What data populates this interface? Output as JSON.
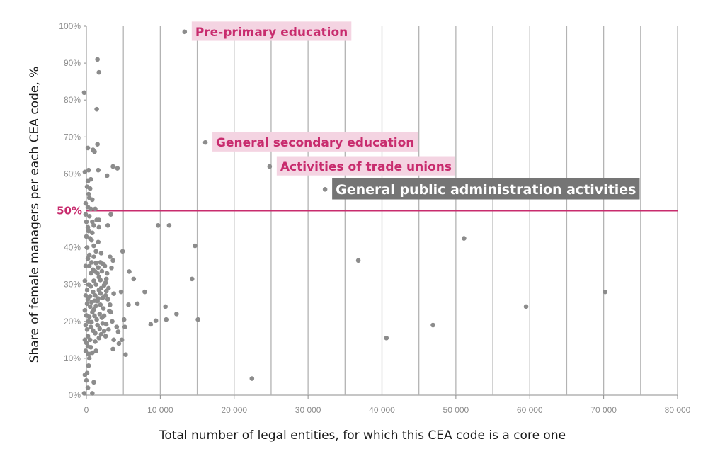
{
  "chart_data": {
    "type": "scatter",
    "xlabel": "Total number of legal entities, for which this CEA code is a core one",
    "ylabel": "Share of female managers per each CEA code, %",
    "xlim": [
      0,
      80000
    ],
    "ylim": [
      0,
      100
    ],
    "x_ticks": [
      "0",
      "10 000",
      "20 000",
      "30 000",
      "40 000",
      "50 000",
      "60 000",
      "70 000",
      "80 000"
    ],
    "y_ticks": [
      "0%",
      "10%",
      "20%",
      "30%",
      "40%",
      "50%",
      "60%",
      "70%",
      "80%",
      "90%",
      "100%"
    ],
    "grid": "vertical",
    "colors": {
      "points": "#8c8c8c",
      "threshold": "#c82c6e",
      "highlight_bg": "#f4d4e2",
      "dark_bg": "#757575"
    },
    "reference_line": {
      "y": 50,
      "label": "50%"
    },
    "annotations": [
      {
        "text": "Pre-primary education",
        "x": 13300,
        "y": 98.5,
        "style": "pink"
      },
      {
        "text": "General secondary education",
        "x": 16100,
        "y": 68.5,
        "style": "pink"
      },
      {
        "text": "Activities of trade unions",
        "x": 24800,
        "y": 62,
        "style": "pink"
      },
      {
        "text": "General public administration activities",
        "x": 32300,
        "y": 55.8,
        "style": "dark"
      }
    ],
    "points": [
      [
        13300,
        98.5
      ],
      [
        16100,
        68.5
      ],
      [
        24800,
        62
      ],
      [
        32300,
        55.8
      ],
      [
        1500,
        91
      ],
      [
        1700,
        87.5
      ],
      [
        1400,
        77.5
      ],
      [
        -300,
        82
      ],
      [
        1500,
        68
      ],
      [
        200,
        67
      ],
      [
        900,
        66.5
      ],
      [
        1100,
        66
      ],
      [
        -200,
        60.5
      ],
      [
        300,
        61
      ],
      [
        1600,
        61
      ],
      [
        2800,
        59.5
      ],
      [
        3600,
        62
      ],
      [
        4200,
        61.5
      ],
      [
        200,
        58
      ],
      [
        500,
        56
      ],
      [
        300,
        54.5
      ],
      [
        800,
        53
      ],
      [
        -100,
        52
      ],
      [
        200,
        51
      ],
      [
        600,
        50.5
      ],
      [
        1200,
        50.5
      ],
      [
        1400,
        47.5
      ],
      [
        1700,
        47.5
      ],
      [
        1000,
        46
      ],
      [
        1700,
        45.5
      ],
      [
        2900,
        46
      ],
      [
        3300,
        49
      ],
      [
        9700,
        46
      ],
      [
        11200,
        46
      ],
      [
        14700,
        40.5
      ],
      [
        4900,
        39
      ],
      [
        3200,
        37.5
      ],
      [
        3600,
        36.5
      ],
      [
        2300,
        35.5
      ],
      [
        3400,
        34.5
      ],
      [
        5800,
        33.5
      ],
      [
        6400,
        31.5
      ],
      [
        14300,
        31.5
      ],
      [
        2700,
        31.5
      ],
      [
        4700,
        28
      ],
      [
        7900,
        28
      ],
      [
        2000,
        29
      ],
      [
        3000,
        29
      ],
      [
        3700,
        27.5
      ],
      [
        5700,
        24.5
      ],
      [
        6900,
        24.8
      ],
      [
        10700,
        24
      ],
      [
        12200,
        22
      ],
      [
        15100,
        20.5
      ],
      [
        10800,
        20.5
      ],
      [
        9400,
        20.2
      ],
      [
        8700,
        19.2
      ],
      [
        5100,
        20.5
      ],
      [
        5200,
        18.5
      ],
      [
        4100,
        18.5
      ],
      [
        4300,
        17.2
      ],
      [
        3500,
        20
      ],
      [
        3300,
        22.5
      ],
      [
        3700,
        15
      ],
      [
        4800,
        15
      ],
      [
        4400,
        14
      ],
      [
        3600,
        12.5
      ],
      [
        5300,
        11
      ],
      [
        2600,
        16
      ],
      [
        2000,
        16.5
      ],
      [
        1800,
        18
      ],
      [
        2200,
        19.5
      ],
      [
        2400,
        21.5
      ],
      [
        1300,
        12
      ],
      [
        1200,
        14.5
      ],
      [
        1700,
        15.5
      ],
      [
        800,
        11.5
      ],
      [
        600,
        13
      ],
      [
        400,
        10
      ],
      [
        300,
        8
      ],
      [
        100,
        6
      ],
      [
        -200,
        5.5
      ],
      [
        0,
        4
      ],
      [
        200,
        2
      ],
      [
        -300,
        0.5
      ],
      [
        800,
        0.5
      ],
      [
        1000,
        3.5
      ],
      [
        22400,
        4.5
      ],
      [
        36800,
        36.5
      ],
      [
        40600,
        15.5
      ],
      [
        46900,
        19
      ],
      [
        51100,
        42.5
      ],
      [
        59500,
        24
      ],
      [
        70200,
        28
      ],
      [
        100,
        40
      ],
      [
        200,
        37
      ],
      [
        400,
        35
      ],
      [
        600,
        33
      ],
      [
        900,
        34
      ],
      [
        1200,
        33.5
      ],
      [
        1500,
        33
      ],
      [
        1700,
        32
      ],
      [
        300,
        30
      ],
      [
        600,
        29.5
      ],
      [
        900,
        28
      ],
      [
        1200,
        27
      ],
      [
        1500,
        25.5
      ],
      [
        1900,
        24.5
      ],
      [
        2300,
        23.5
      ],
      [
        200,
        26
      ],
      [
        500,
        24
      ],
      [
        800,
        22.5
      ],
      [
        1100,
        21.5
      ],
      [
        1400,
        20.5
      ],
      [
        1800,
        22
      ],
      [
        2100,
        21
      ],
      [
        300,
        20
      ],
      [
        600,
        18.5
      ],
      [
        900,
        17.5
      ],
      [
        1200,
        16.8
      ],
      [
        1500,
        19
      ],
      [
        200,
        16
      ],
      [
        500,
        15
      ],
      [
        -100,
        35
      ],
      [
        -200,
        31
      ],
      [
        -100,
        27
      ],
      [
        -200,
        23
      ],
      [
        -100,
        19
      ],
      [
        -200,
        15
      ],
      [
        -100,
        12
      ],
      [
        0,
        43
      ],
      [
        300,
        44.5
      ],
      [
        700,
        42
      ],
      [
        1000,
        40.5
      ],
      [
        1300,
        39
      ],
      [
        1600,
        41.5
      ],
      [
        2000,
        38.5
      ],
      [
        0,
        47
      ],
      [
        400,
        48.5
      ],
      [
        800,
        47
      ],
      [
        400,
        38
      ],
      [
        700,
        36
      ],
      [
        1000,
        31
      ],
      [
        1300,
        30
      ],
      [
        1700,
        28.5
      ],
      [
        2600,
        27
      ],
      [
        2900,
        26
      ],
      [
        3200,
        24.5
      ],
      [
        2600,
        30.5
      ],
      [
        2800,
        33
      ],
      [
        2500,
        35
      ],
      [
        1900,
        36
      ],
      [
        500,
        26.8
      ],
      [
        700,
        25.2
      ],
      [
        400,
        21.2
      ],
      [
        700,
        19.8
      ],
      [
        1000,
        23.2
      ],
      [
        1100,
        25.6
      ],
      [
        1300,
        24.2
      ],
      [
        100,
        28.5
      ],
      [
        100,
        24.8
      ],
      [
        0,
        21.6
      ],
      [
        100,
        17.8
      ],
      [
        0,
        14.2
      ],
      [
        200,
        13.2
      ],
      [
        300,
        11.2
      ],
      [
        1600,
        26.2
      ],
      [
        1900,
        27.6
      ],
      [
        2200,
        26.4
      ],
      [
        2400,
        17.4
      ],
      [
        2700,
        19.2
      ],
      [
        3000,
        17.8
      ],
      [
        3100,
        22.8
      ],
      [
        400,
        53.5
      ],
      [
        100,
        56.5
      ],
      [
        600,
        58.5
      ],
      [
        -100,
        49
      ],
      [
        200,
        45.5
      ],
      [
        500,
        42.5
      ],
      [
        800,
        44
      ],
      [
        1000,
        37.5
      ],
      [
        1300,
        35.8
      ],
      [
        1600,
        34.6
      ],
      [
        1900,
        31.2
      ],
      [
        2100,
        33.6
      ],
      [
        2400,
        29.8
      ],
      [
        2700,
        28.2
      ]
    ]
  }
}
